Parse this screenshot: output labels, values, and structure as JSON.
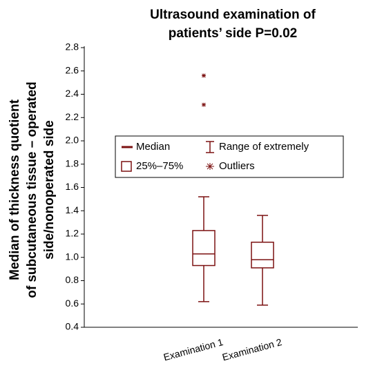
{
  "chart_data": {
    "type": "box",
    "title": [
      "Ultrasound examination of",
      "patients’ side P=0.02"
    ],
    "y_label": [
      "Median of thickness quotient",
      "of subcutaneous tissue – operated",
      "side/nonoperated side"
    ],
    "categories": [
      "Examination 1",
      "Examination 2"
    ],
    "boxes": [
      {
        "min": 0.62,
        "q1": 0.93,
        "median": 1.03,
        "q3": 1.23,
        "max": 1.52,
        "outliers": [
          2.31,
          2.56
        ]
      },
      {
        "min": 0.59,
        "q1": 0.91,
        "median": 0.98,
        "q3": 1.13,
        "max": 1.36,
        "outliers": []
      }
    ],
    "color": "#7b1010",
    "legend": [
      "Median",
      "25%–75%",
      "Range of extremely",
      "Outliers"
    ],
    "ylim": [
      0.4,
      2.8
    ],
    "yticks": [
      {
        "value": 0.4,
        "label": "0.4"
      },
      {
        "value": 0.6,
        "label": "0.6"
      },
      {
        "value": 0.8,
        "label": "0.8"
      },
      {
        "value": 1.0,
        "label": "1.0"
      },
      {
        "value": 1.2,
        "label": "1.2"
      },
      {
        "value": 1.4,
        "label": "1.4"
      },
      {
        "value": 1.6,
        "label": "1.6"
      },
      {
        "value": 1.8,
        "label": "1.8"
      },
      {
        "value": 2.0,
        "label": "2.0"
      },
      {
        "value": 2.2,
        "label": "2.2"
      },
      {
        "value": 2.4,
        "label": "2.4"
      },
      {
        "value": 2.6,
        "label": "2.6"
      },
      {
        "value": 2.8,
        "label": "2.8"
      }
    ],
    "grid": false
  }
}
